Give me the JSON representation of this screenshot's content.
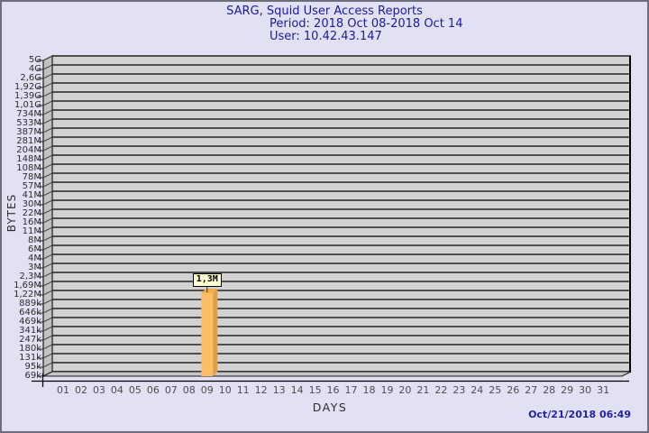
{
  "title": {
    "line1": "SARG, Squid User Access Reports",
    "line2": "Period: 2018 Oct 08-2018 Oct 14",
    "line3": "User: 10.42.43.147"
  },
  "footer": {
    "timestamp": "Oct/21/2018 06:49"
  },
  "chart_data": {
    "type": "bar",
    "title": "SARG, Squid User Access Reports",
    "subtitle": "Period: 2018 Oct 08-2018 Oct 14",
    "user": "User: 10.42.43.147",
    "xlabel": "DAYS",
    "ylabel": "BYTES",
    "scale": "log",
    "grid": true,
    "y_ticks": [
      "5G",
      "4G",
      "2,6G",
      "1,92G",
      "1,39G",
      "1,01G",
      "734M",
      "533M",
      "387M",
      "281M",
      "204M",
      "148M",
      "108M",
      "78M",
      "57M",
      "41M",
      "30M",
      "22M",
      "16M",
      "11M",
      "8M",
      "6M",
      "4M",
      "3M",
      "2,3M",
      "1,69M",
      "1,22M",
      "889k",
      "646k",
      "469k",
      "341k",
      "247k",
      "180k",
      "131k",
      "95k",
      "69k"
    ],
    "x_ticks": [
      "01",
      "02",
      "03",
      "04",
      "05",
      "06",
      "07",
      "08",
      "09",
      "10",
      "11",
      "12",
      "13",
      "14",
      "15",
      "16",
      "17",
      "18",
      "19",
      "20",
      "21",
      "22",
      "23",
      "24",
      "25",
      "26",
      "27",
      "28",
      "29",
      "30",
      "31"
    ],
    "bars": [
      {
        "day": "09",
        "value_label": "1,3M",
        "value_bytes": 1300000
      }
    ],
    "colors": {
      "plot_bg": "#d2d2d2",
      "wall": "#c2c2c2",
      "floor": "#c6c6c6",
      "gridline": "#4f4f4f",
      "bar_front": "#fdbe63",
      "bar_side": "#dfa045",
      "bar_top": "#f5ac4e",
      "annotation_bg": "#ffffd0",
      "title_text": "#1b1b9e",
      "timestamp_text": "#2323ac"
    }
  }
}
